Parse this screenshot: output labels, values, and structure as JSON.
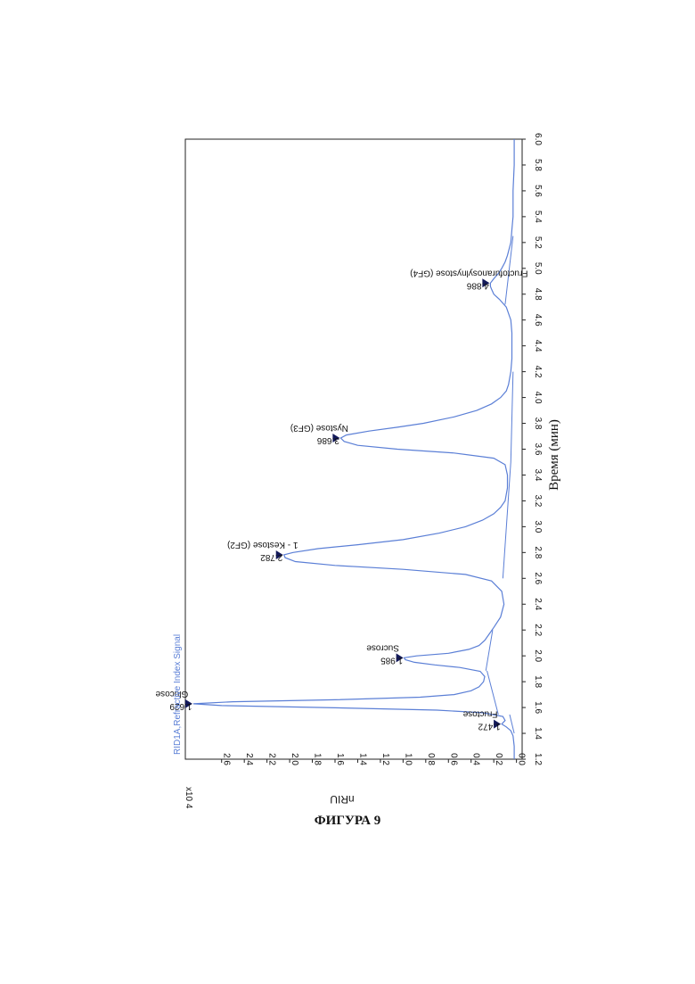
{
  "caption": "ФИГУРА 9",
  "chart_data": {
    "type": "line",
    "title": "",
    "signal_label": "RID1A,Refractive Index Signal",
    "ylabel": "nRIU",
    "y_multiplier": "x10 4",
    "xlabel": "Время (мин)",
    "xlim": [
      1.2,
      6.0
    ],
    "ylim": [
      -0.05,
      2.92
    ],
    "x_ticks": [
      "1.2",
      "1.4",
      "1.6",
      "1.8",
      "2.0",
      "2.2",
      "2.4",
      "2.6",
      "2.8",
      "3.0",
      "3.2",
      "3.4",
      "3.6",
      "3.8",
      "4.0",
      "4.2",
      "4.4",
      "4.6",
      "4.8",
      "5.0",
      "5.2",
      "5.4",
      "5.6",
      "5.8",
      "6.0"
    ],
    "y_ticks": [
      "0.0",
      "0.2",
      "0.4",
      "0.6",
      "0.8",
      "1.0",
      "1.2",
      "1.4",
      "1.6",
      "1.8",
      "2.0",
      "2.2",
      "2.4",
      "2.6"
    ],
    "grid": false,
    "line_color": "#5b7fd6",
    "marker_color": "#13195a",
    "peaks": [
      {
        "time": "1.472",
        "name": "Fructose",
        "x": 1.472,
        "y": 0.13
      },
      {
        "time": "1.629",
        "name": "Glucose",
        "x": 1.629,
        "y": 2.85
      },
      {
        "time": "1.985",
        "name": "Sucrose",
        "x": 1.985,
        "y": 0.99
      },
      {
        "time": "2.782",
        "name": "1 - Kestose (GF2)",
        "x": 2.782,
        "y": 2.05
      },
      {
        "time": "3.686",
        "name": "Nystose (GF3)",
        "x": 3.686,
        "y": 1.55
      },
      {
        "time": "4.886",
        "name": "Fructofuranosylnystose (GF4)",
        "x": 4.886,
        "y": 0.23
      }
    ],
    "series": [
      {
        "x": [
          1.2,
          1.3,
          1.38,
          1.42,
          1.45,
          1.472,
          1.5,
          1.53,
          1.56,
          1.58,
          1.6,
          1.615,
          1.629,
          1.645,
          1.66,
          1.68,
          1.7,
          1.73,
          1.76,
          1.8,
          1.84,
          1.88,
          1.91,
          1.93,
          1.95,
          1.97,
          1.985,
          2.0,
          2.02,
          2.05,
          2.08,
          2.12,
          2.17,
          2.22,
          2.3,
          2.4,
          2.5,
          2.58,
          2.63,
          2.67,
          2.7,
          2.73,
          2.76,
          2.782,
          2.8,
          2.83,
          2.86,
          2.9,
          2.95,
          3.0,
          3.05,
          3.1,
          3.15,
          3.2,
          3.3,
          3.4,
          3.48,
          3.53,
          3.57,
          3.6,
          3.63,
          3.66,
          3.686,
          3.71,
          3.74,
          3.77,
          3.8,
          3.85,
          3.9,
          3.95,
          4.0,
          4.05,
          4.1,
          4.2,
          4.3,
          4.4,
          4.5,
          4.6,
          4.7,
          4.76,
          4.8,
          4.84,
          4.86,
          4.886,
          4.92,
          4.96,
          5.0,
          5.05,
          5.1,
          5.2,
          5.3,
          5.4,
          5.6,
          5.8,
          6.0
        ],
        "y": [
          0.02,
          0.02,
          0.03,
          0.05,
          0.09,
          0.13,
          0.1,
          0.12,
          0.3,
          0.7,
          1.7,
          2.6,
          2.85,
          2.5,
          1.6,
          0.85,
          0.55,
          0.4,
          0.33,
          0.29,
          0.28,
          0.32,
          0.5,
          0.72,
          0.9,
          0.98,
          0.99,
          0.88,
          0.6,
          0.42,
          0.33,
          0.28,
          0.24,
          0.2,
          0.14,
          0.11,
          0.13,
          0.22,
          0.45,
          1.0,
          1.6,
          1.95,
          2.04,
          2.05,
          1.97,
          1.75,
          1.4,
          1.0,
          0.68,
          0.45,
          0.3,
          0.2,
          0.14,
          0.1,
          0.08,
          0.08,
          0.1,
          0.2,
          0.55,
          1.05,
          1.4,
          1.52,
          1.55,
          1.5,
          1.3,
          1.05,
          0.82,
          0.55,
          0.35,
          0.22,
          0.14,
          0.09,
          0.07,
          0.05,
          0.04,
          0.04,
          0.04,
          0.05,
          0.09,
          0.15,
          0.2,
          0.22,
          0.23,
          0.23,
          0.2,
          0.16,
          0.13,
          0.1,
          0.08,
          0.05,
          0.04,
          0.03,
          0.03,
          0.02,
          0.02
        ]
      }
    ],
    "baselines": [
      {
        "x": [
          1.4,
          1.545
        ],
        "y": [
          0.02,
          0.06
        ]
      },
      {
        "x": [
          1.545,
          1.885
        ],
        "y": [
          0.16,
          0.26
        ]
      },
      {
        "x": [
          1.885,
          2.2
        ],
        "y": [
          0.27,
          0.21
        ]
      },
      {
        "x": [
          2.6,
          3.5
        ],
        "y": [
          0.12,
          0.05
        ]
      },
      {
        "x": [
          3.5,
          4.2
        ],
        "y": [
          0.05,
          0.03
        ]
      },
      {
        "x": [
          4.72,
          5.25
        ],
        "y": [
          0.1,
          0.03
        ]
      }
    ]
  }
}
